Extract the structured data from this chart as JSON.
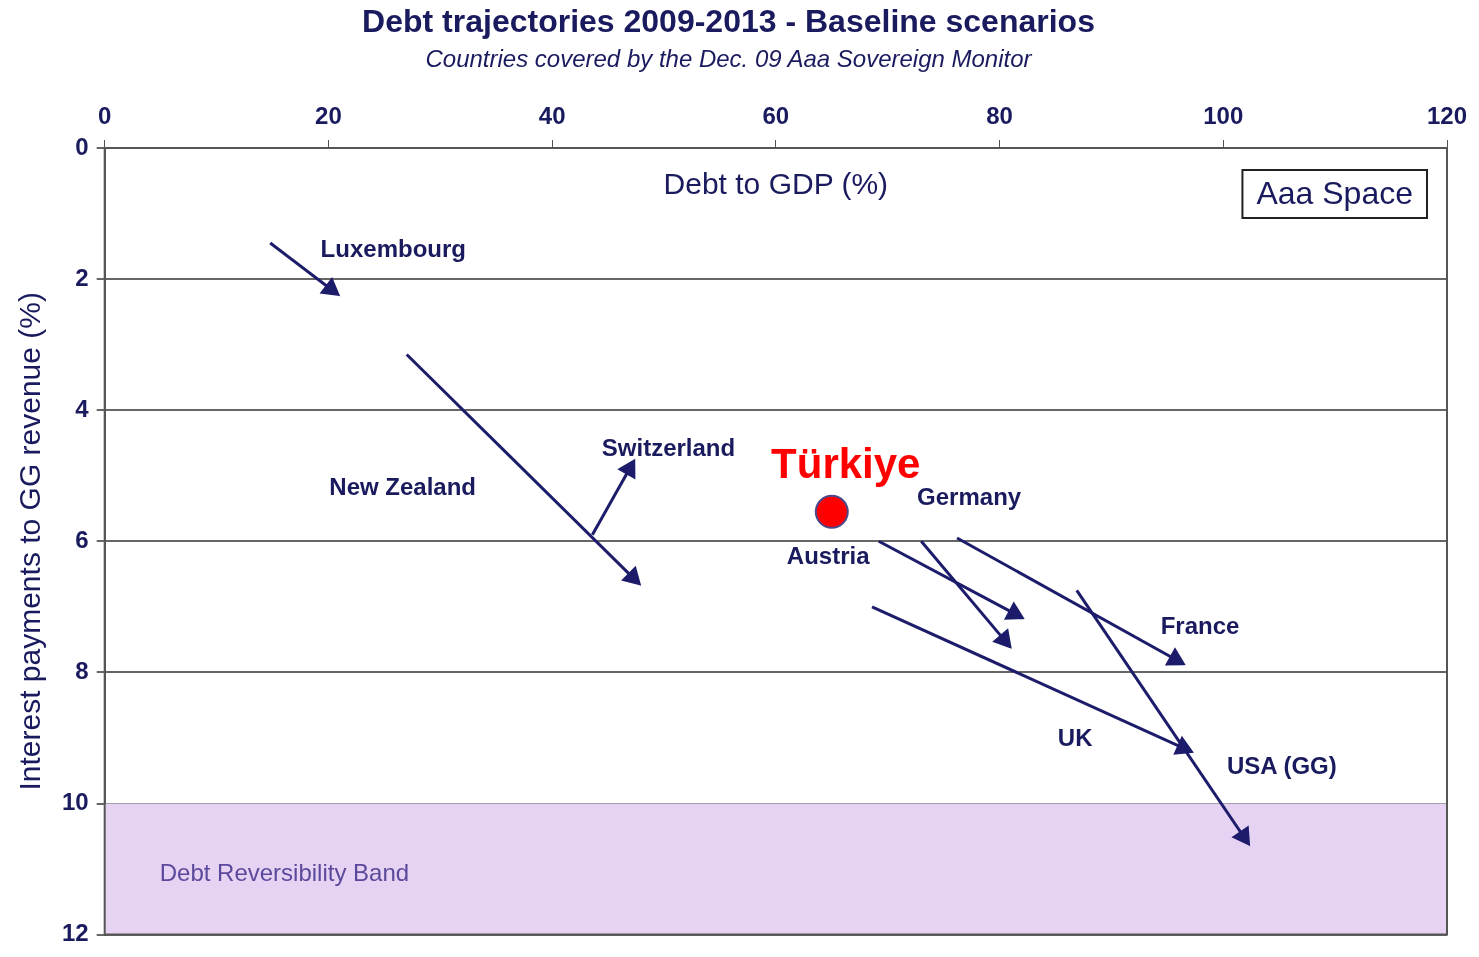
{
  "chart_data": {
    "type": "line",
    "title": "Debt trajectories 2009-2013 - Baseline scenarios",
    "subtitle": "Countries covered by the Dec. 09 Aaa Sovereign Monitor",
    "xlabel": "Debt to GDP (%)",
    "ylabel": "Interest payments to GG revenue (%)",
    "xlim": [
      0,
      120
    ],
    "xticks": [
      0,
      20,
      40,
      60,
      80,
      100,
      120
    ],
    "ylim": [
      12,
      0
    ],
    "yticks": [
      0,
      2,
      4,
      6,
      8,
      10,
      12
    ],
    "grid": "y",
    "legend": false,
    "series": [
      {
        "color": "#1c1c6b",
        "x": [
          14.8,
          20.2
        ],
        "values": [
          1.45,
          2.15
        ]
      },
      {
        "color": "#1c1c6b",
        "x": [
          27.0,
          47.2
        ],
        "values": [
          3.15,
          6.55
        ]
      },
      {
        "color": "#1c1c6b",
        "x": [
          43.6,
          46.9
        ],
        "values": [
          5.9,
          4.9
        ]
      },
      {
        "color": "#1c1c6b",
        "x": [
          69.2,
          81.3
        ],
        "values": [
          6.0,
          7.1
        ]
      },
      {
        "color": "#1c1c6b",
        "x": [
          73.0,
          80.4
        ],
        "values": [
          6.0,
          7.5
        ]
      },
      {
        "color": "#1c1c6b",
        "x": [
          76.2,
          95.7
        ],
        "values": [
          5.95,
          7.8
        ]
      },
      {
        "color": "#1c1c6b",
        "x": [
          68.6,
          96.4
        ],
        "values": [
          7.0,
          9.15
        ]
      },
      {
        "color": "#1c1c6b",
        "x": [
          86.9,
          101.8
        ],
        "values": [
          6.75,
          10.5
        ]
      },
      {
        "type": "scatter",
        "name": "Türkiye",
        "color": "#ff0000",
        "marker": "circle",
        "x": [
          65.0
        ],
        "values": [
          5.55
        ]
      }
    ],
    "bands": [
      {
        "axis": "y",
        "from": 10,
        "to": 12,
        "label": "Debt Reversibility Band",
        "color": "#e6d2f2"
      }
    ],
    "annotations": [
      "Aaa Space",
      "Luxembourg",
      "New Zealand",
      "Switzerland",
      "Austria",
      "Germany",
      "France",
      "UK",
      "USA (GG)"
    ]
  }
}
